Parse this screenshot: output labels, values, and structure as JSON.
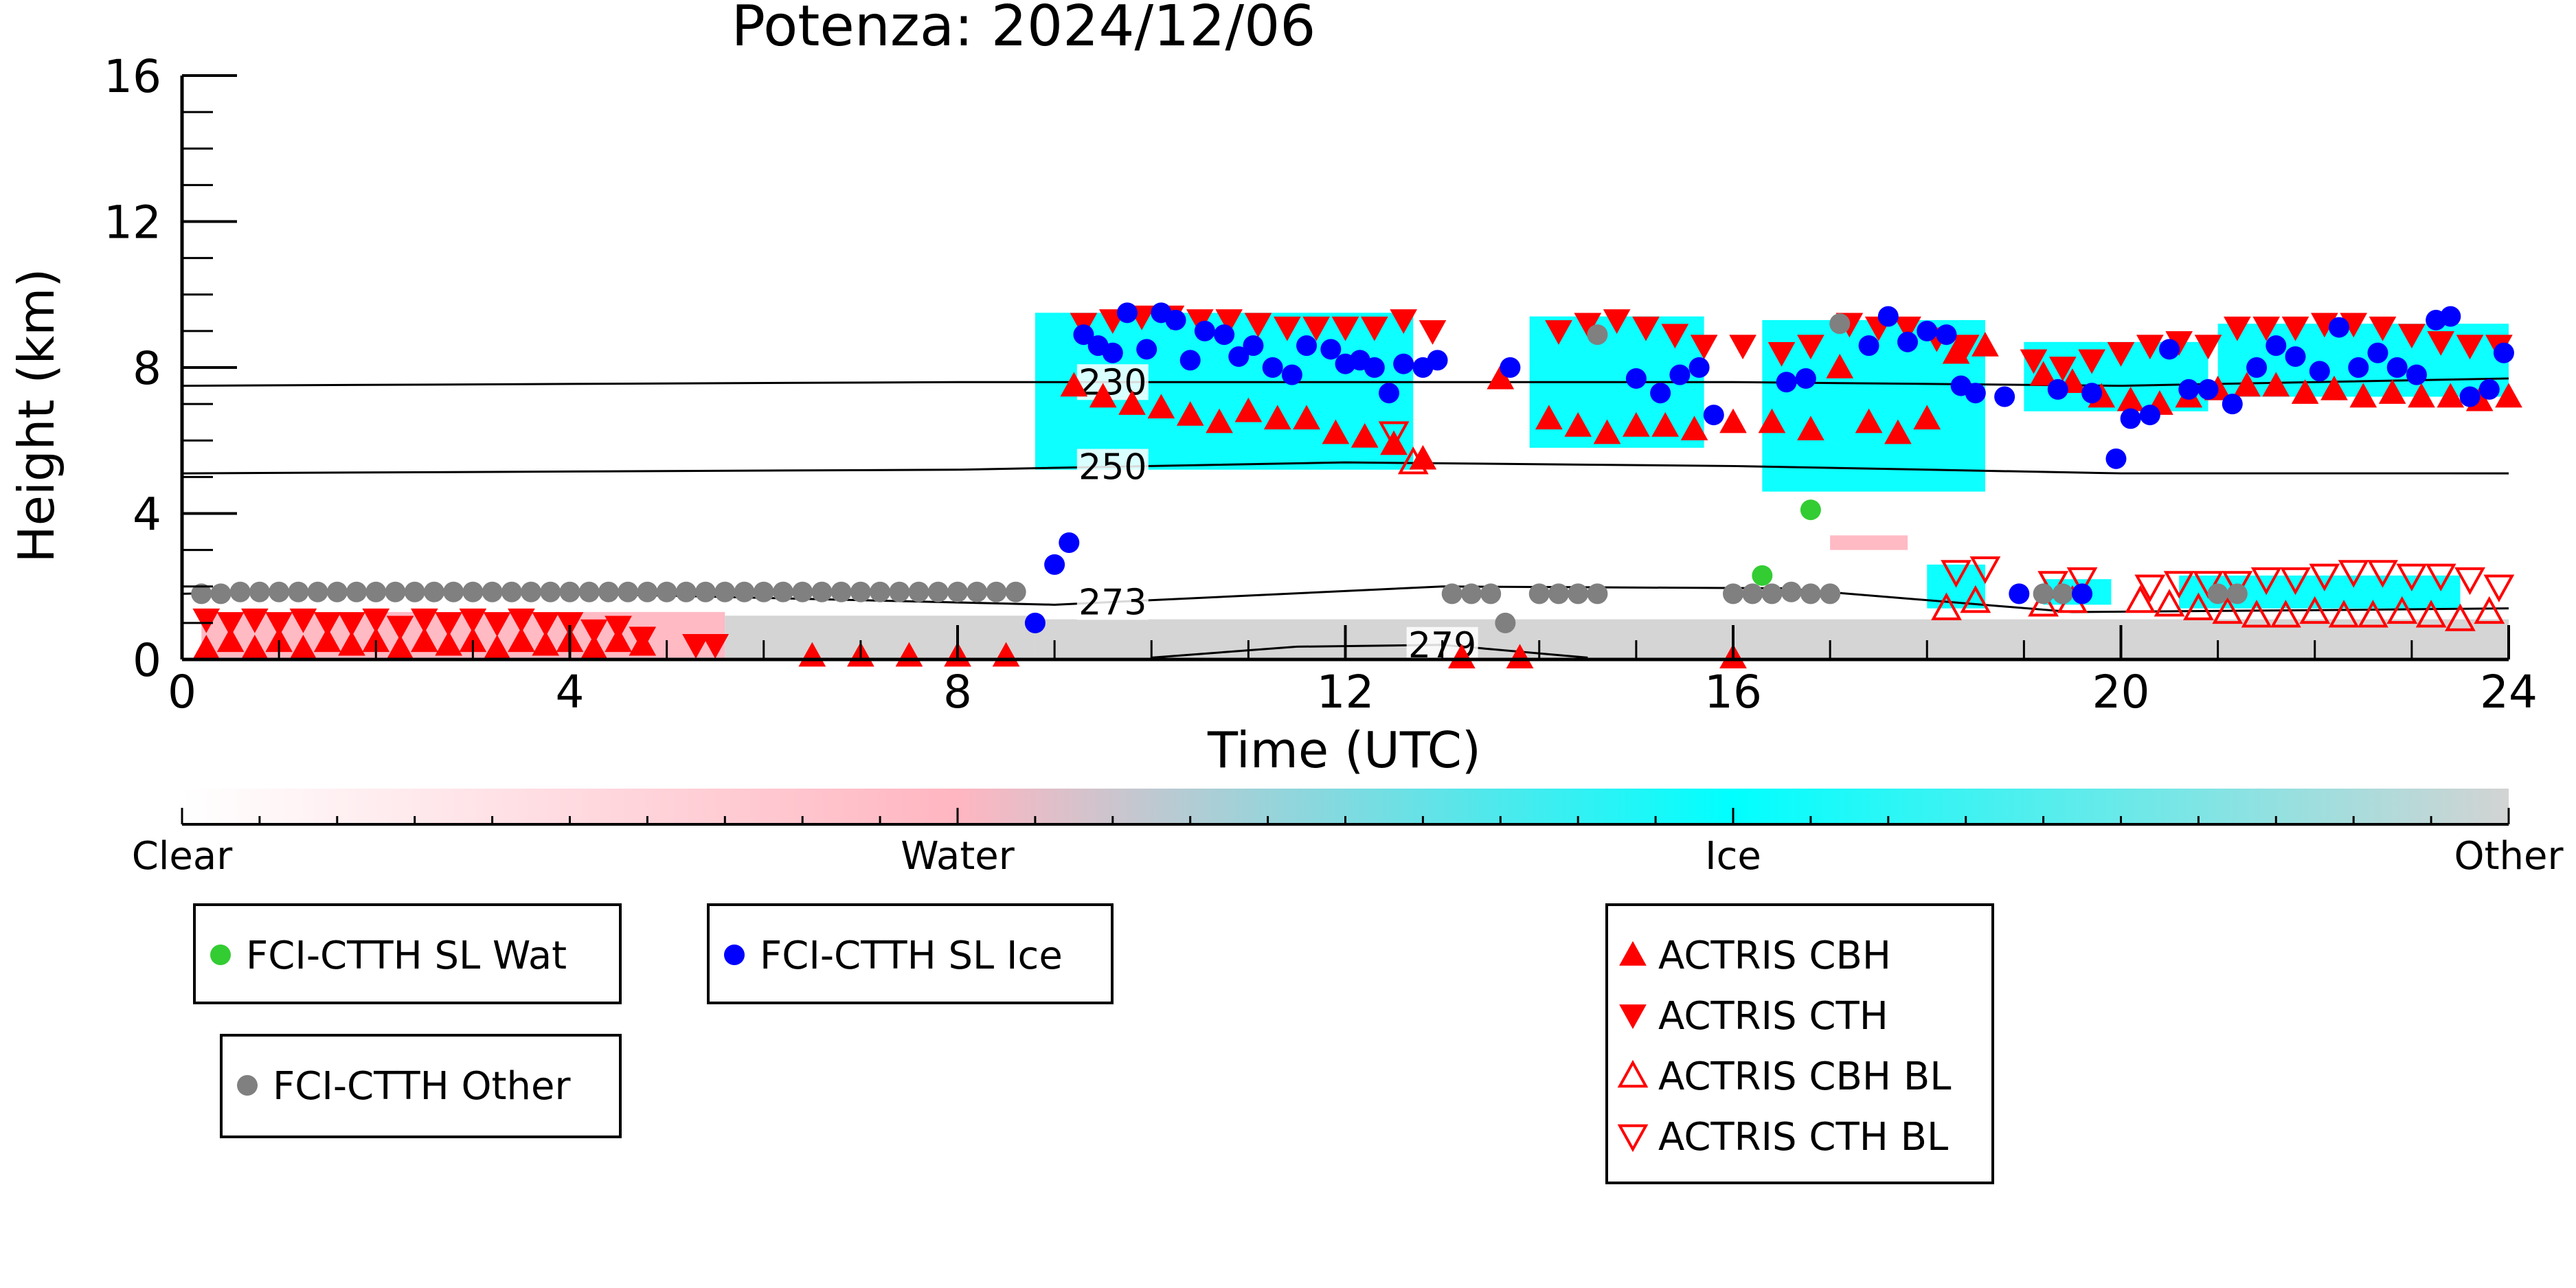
{
  "chart_data": {
    "type": "scatter",
    "title": "Potenza: 2024/12/06",
    "xlabel": "Time (UTC)",
    "ylabel": "Height (km)",
    "xlim": [
      0,
      24
    ],
    "ylim": [
      0,
      16
    ],
    "xticks": [
      0,
      4,
      8,
      12,
      16,
      20,
      24
    ],
    "yticks": [
      0,
      4,
      8,
      12,
      16
    ],
    "cloud_mask": {
      "colorbar_labels": [
        "Clear",
        "Water",
        "Ice",
        "Other"
      ],
      "colors": {
        "clear": "#ffffff",
        "water": "#ffb6c1",
        "ice": "#00ffff",
        "other": "#d3d3d3"
      },
      "regions": [
        {
          "class": "water",
          "x0": 0.2,
          "x1": 5.6,
          "y0": 0.05,
          "y1": 1.3
        },
        {
          "class": "other",
          "x0": 5.6,
          "x1": 8.8,
          "y0": 0.05,
          "y1": 1.2
        },
        {
          "class": "ice",
          "x0": 8.8,
          "x1": 12.7,
          "y0": 5.2,
          "y1": 9.5
        },
        {
          "class": "ice",
          "x0": 13.9,
          "x1": 15.7,
          "y0": 5.8,
          "y1": 9.4
        },
        {
          "class": "ice",
          "x0": 16.3,
          "x1": 18.6,
          "y0": 4.6,
          "y1": 9.3
        },
        {
          "class": "ice",
          "x0": 19.0,
          "x1": 20.9,
          "y0": 6.8,
          "y1": 8.7
        },
        {
          "class": "ice",
          "x0": 21.0,
          "x1": 24.0,
          "y0": 7.2,
          "y1": 9.2
        },
        {
          "class": "other",
          "x0": 8.8,
          "x1": 24.0,
          "y0": 0.05,
          "y1": 1.1
        },
        {
          "class": "ice",
          "x0": 18.0,
          "x1": 18.6,
          "y0": 1.4,
          "y1": 2.6
        },
        {
          "class": "ice",
          "x0": 19.2,
          "x1": 19.9,
          "y0": 1.5,
          "y1": 2.2
        },
        {
          "class": "ice",
          "x0": 20.6,
          "x1": 23.5,
          "y0": 1.4,
          "y1": 2.3
        },
        {
          "class": "water",
          "x0": 17.0,
          "x1": 17.8,
          "y0": 3.0,
          "y1": 3.4
        }
      ]
    },
    "contours": [
      {
        "label": "230",
        "label_x": 9.6,
        "x": [
          0,
          4,
          8,
          12,
          16,
          20,
          24
        ],
        "y": [
          7.5,
          7.55,
          7.6,
          7.6,
          7.6,
          7.5,
          7.7
        ]
      },
      {
        "label": "250",
        "label_x": 9.6,
        "x": [
          0,
          4,
          8,
          12,
          16,
          20,
          24
        ],
        "y": [
          5.1,
          5.15,
          5.2,
          5.4,
          5.3,
          5.1,
          5.1
        ]
      },
      {
        "label": "273",
        "label_x": 9.6,
        "x": [
          0,
          2,
          5,
          9,
          13,
          16.5,
          19.5,
          22,
          24
        ],
        "y": [
          1.8,
          1.9,
          1.75,
          1.5,
          2.0,
          1.95,
          1.3,
          1.35,
          1.4
        ]
      },
      {
        "label": "279",
        "label_x": 13.0,
        "x": [
          10,
          11.5,
          13,
          14.5
        ],
        "y": [
          0.05,
          0.35,
          0.4,
          0.05
        ]
      }
    ],
    "series": [
      {
        "name": "FCI-CTTH SL Wat",
        "marker": "circle",
        "color": "#33cc33",
        "x": [
          16.3,
          16.8
        ],
        "y": [
          2.3,
          4.1
        ]
      },
      {
        "name": "FCI-CTTH SL Ice",
        "marker": "circle",
        "color": "#0000ff",
        "x": [
          8.8,
          9.0,
          9.15,
          9.3,
          9.45,
          9.6,
          9.75,
          9.95,
          10.1,
          10.25,
          10.4,
          10.55,
          10.75,
          10.9,
          11.05,
          11.25,
          11.45,
          11.6,
          11.85,
          12.0,
          12.15,
          12.3,
          12.45,
          12.6,
          12.8,
          12.95,
          13.7,
          15.0,
          15.25,
          15.45,
          15.65,
          15.8,
          16.55,
          16.75,
          17.4,
          17.6,
          17.8,
          18.0,
          18.2,
          18.35,
          18.5,
          18.8,
          19.35,
          19.7,
          19.95,
          20.1,
          20.3,
          20.5,
          20.7,
          20.9,
          21.15,
          21.4,
          21.6,
          21.8,
          22.05,
          22.25,
          22.45,
          22.65,
          22.85,
          23.05,
          23.25,
          23.4,
          23.6,
          23.8,
          23.95,
          18.95,
          19.6
        ],
        "y": [
          1.0,
          2.6,
          3.2,
          8.9,
          8.6,
          8.4,
          9.5,
          8.5,
          9.5,
          9.3,
          8.2,
          9.0,
          8.9,
          8.3,
          8.6,
          8.0,
          7.8,
          8.6,
          8.5,
          8.1,
          8.2,
          8.0,
          7.3,
          8.1,
          8.0,
          8.2,
          8.0,
          7.7,
          7.3,
          7.8,
          8.0,
          6.7,
          7.6,
          7.7,
          8.6,
          9.4,
          8.7,
          9.0,
          8.9,
          7.5,
          7.3,
          7.2,
          7.4,
          7.3,
          5.5,
          6.6,
          6.7,
          8.5,
          7.4,
          7.4,
          7.0,
          8.0,
          8.6,
          8.3,
          7.9,
          9.1,
          8.0,
          8.4,
          8.0,
          7.8,
          9.3,
          9.4,
          7.2,
          7.4,
          8.4,
          1.8,
          1.8
        ]
      },
      {
        "name": "FCI-CTTH Other",
        "marker": "circle",
        "color": "#808080",
        "x": [
          0.2,
          0.4,
          0.6,
          0.8,
          1.0,
          1.2,
          1.4,
          1.6,
          1.8,
          2.0,
          2.2,
          2.4,
          2.6,
          2.8,
          3.0,
          3.2,
          3.4,
          3.6,
          3.8,
          4.0,
          4.2,
          4.4,
          4.6,
          4.8,
          5.0,
          5.2,
          5.4,
          5.6,
          5.8,
          6.0,
          6.2,
          6.4,
          6.6,
          6.8,
          7.0,
          7.2,
          7.4,
          7.6,
          7.8,
          8.0,
          8.2,
          8.4,
          8.6,
          13.1,
          13.3,
          13.5,
          13.65,
          14.0,
          14.2,
          14.4,
          14.6,
          14.6,
          16.0,
          16.2,
          16.4,
          16.6,
          16.8,
          17.0,
          17.1,
          19.2,
          19.4,
          21.0,
          21.2
        ],
        "y": [
          1.8,
          1.8,
          1.85,
          1.85,
          1.85,
          1.85,
          1.85,
          1.85,
          1.85,
          1.85,
          1.85,
          1.85,
          1.85,
          1.85,
          1.85,
          1.85,
          1.85,
          1.85,
          1.85,
          1.85,
          1.85,
          1.85,
          1.85,
          1.85,
          1.85,
          1.85,
          1.85,
          1.85,
          1.85,
          1.85,
          1.85,
          1.85,
          1.85,
          1.85,
          1.85,
          1.85,
          1.85,
          1.85,
          1.85,
          1.85,
          1.85,
          1.85,
          1.85,
          1.8,
          1.8,
          1.8,
          1.0,
          1.8,
          1.8,
          1.8,
          1.8,
          8.9,
          1.8,
          1.8,
          1.8,
          1.85,
          1.8,
          1.8,
          9.2,
          1.8,
          1.8,
          1.8,
          1.8
        ]
      },
      {
        "name": "ACTRIS CBH",
        "marker": "triangle-up",
        "color": "#ff0000",
        "x": [
          0.25,
          0.5,
          0.75,
          1.0,
          1.25,
          1.5,
          1.75,
          2.0,
          2.25,
          2.5,
          2.75,
          3.0,
          3.25,
          3.5,
          3.75,
          4.0,
          4.25,
          4.5,
          4.75,
          6.5,
          7.0,
          7.5,
          8.0,
          8.5,
          9.2,
          9.5,
          9.8,
          10.1,
          10.4,
          10.7,
          11.0,
          11.3,
          11.6,
          11.9,
          12.2,
          12.5,
          12.8,
          13.6,
          14.1,
          14.4,
          14.7,
          15.0,
          15.3,
          15.6,
          16.0,
          16.4,
          16.8,
          17.1,
          17.4,
          17.7,
          18.0,
          18.3,
          18.6,
          19.2,
          19.5,
          19.8,
          20.1,
          20.4,
          20.7,
          21.0,
          21.3,
          21.6,
          21.9,
          22.2,
          22.5,
          22.8,
          23.1,
          23.4,
          23.7,
          24.0,
          13.2,
          13.8,
          16.0
        ],
        "y": [
          0.3,
          0.5,
          0.3,
          0.5,
          0.3,
          0.5,
          0.4,
          0.5,
          0.3,
          0.5,
          0.4,
          0.5,
          0.3,
          0.5,
          0.4,
          0.5,
          0.3,
          0.5,
          0.4,
          0.1,
          0.1,
          0.1,
          0.1,
          0.1,
          7.5,
          7.2,
          7.0,
          6.9,
          6.7,
          6.5,
          6.8,
          6.6,
          6.6,
          6.2,
          6.1,
          5.9,
          5.5,
          7.7,
          6.6,
          6.4,
          6.2,
          6.4,
          6.4,
          6.3,
          6.5,
          6.5,
          6.3,
          8.0,
          6.5,
          6.2,
          6.6,
          8.4,
          8.6,
          7.8,
          7.6,
          7.2,
          7.1,
          7.0,
          7.2,
          7.4,
          7.5,
          7.5,
          7.3,
          7.4,
          7.2,
          7.3,
          7.2,
          7.2,
          7.1,
          7.2,
          0.05,
          0.05,
          0.05
        ]
      },
      {
        "name": "ACTRIS CTH",
        "marker": "triangle-down",
        "color": "#ff0000",
        "x": [
          0.25,
          0.5,
          0.75,
          1.0,
          1.25,
          1.5,
          1.75,
          2.0,
          2.25,
          2.5,
          2.75,
          3.0,
          3.25,
          3.5,
          3.75,
          4.0,
          4.25,
          4.5,
          4.75,
          5.3,
          5.5,
          9.3,
          9.6,
          9.9,
          10.2,
          10.5,
          10.8,
          11.1,
          11.4,
          11.7,
          12.0,
          12.3,
          12.6,
          12.9,
          14.2,
          14.5,
          14.8,
          15.1,
          15.4,
          15.7,
          16.1,
          16.5,
          16.8,
          17.2,
          17.5,
          17.8,
          18.1,
          18.4,
          19.1,
          19.4,
          19.7,
          20.0,
          20.3,
          20.6,
          20.9,
          21.2,
          21.5,
          21.8,
          22.1,
          22.4,
          22.7,
          23.0,
          23.3,
          23.6,
          23.9
        ],
        "y": [
          1.1,
          1.0,
          1.1,
          1.0,
          1.1,
          1.0,
          1.0,
          1.1,
          0.9,
          1.1,
          1.0,
          1.1,
          1.0,
          1.1,
          1.0,
          1.0,
          0.8,
          0.9,
          0.6,
          0.4,
          0.4,
          9.2,
          9.3,
          9.4,
          9.4,
          9.3,
          9.3,
          9.2,
          9.1,
          9.1,
          9.1,
          9.1,
          9.3,
          9.0,
          9.0,
          9.2,
          9.3,
          9.1,
          8.9,
          8.6,
          8.6,
          8.4,
          8.6,
          9.2,
          9.1,
          9.1,
          8.8,
          8.6,
          8.2,
          8.0,
          8.2,
          8.4,
          8.6,
          8.7,
          8.6,
          9.1,
          9.1,
          9.1,
          9.2,
          9.2,
          9.1,
          8.9,
          8.7,
          8.6,
          8.6
        ]
      },
      {
        "name": "ACTRIS CBH BL",
        "marker": "triangle-up-open",
        "color": "#ff0000",
        "x": [
          18.2,
          18.5,
          19.2,
          19.5,
          20.2,
          20.5,
          20.8,
          21.1,
          21.4,
          21.7,
          22.0,
          22.3,
          22.6,
          22.9,
          23.2,
          23.5,
          23.8,
          12.7
        ],
        "y": [
          1.4,
          1.6,
          1.5,
          1.6,
          1.6,
          1.5,
          1.4,
          1.3,
          1.2,
          1.2,
          1.3,
          1.2,
          1.2,
          1.3,
          1.2,
          1.1,
          1.3,
          5.4
        ]
      },
      {
        "name": "ACTRIS CTH BL",
        "marker": "triangle-down-open",
        "color": "#ff0000",
        "x": [
          18.3,
          18.6,
          19.3,
          19.6,
          20.3,
          20.6,
          20.9,
          21.2,
          21.5,
          21.8,
          22.1,
          22.4,
          22.7,
          23.0,
          23.3,
          23.6,
          23.9,
          12.5
        ],
        "y": [
          2.4,
          2.5,
          2.1,
          2.2,
          2.0,
          2.1,
          2.1,
          2.1,
          2.2,
          2.2,
          2.3,
          2.4,
          2.4,
          2.3,
          2.3,
          2.2,
          2.0,
          6.2
        ]
      }
    ]
  }
}
